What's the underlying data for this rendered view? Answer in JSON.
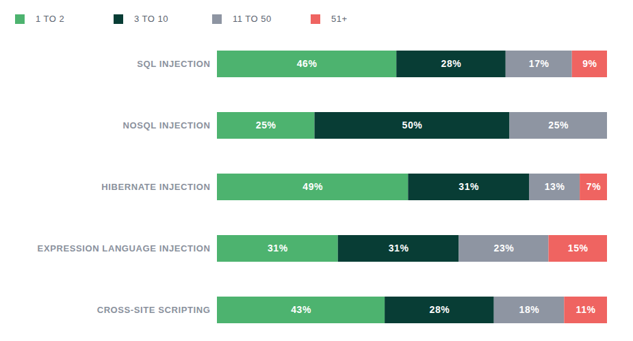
{
  "chart_data": {
    "type": "bar",
    "orientation": "horizontal",
    "stacked": true,
    "data_labels": true,
    "tick_labels": "y",
    "legend": "top",
    "categories": [
      "SQL INJECTION",
      "NOSQL INJECTION",
      "HIBERNATE INJECTION",
      "EXPRESSION LANGUAGE INJECTION",
      "CROSS-SITE SCRIPTING"
    ],
    "xlim": [
      0,
      100
    ],
    "series": [
      {
        "name": "1 TO 2",
        "color": "#4db36f",
        "values": [
          46,
          25,
          49,
          31,
          43
        ],
        "value_labels": [
          "46%",
          "25%",
          "49%",
          "31%",
          "43%"
        ]
      },
      {
        "name": "3 TO 10",
        "color": "#083d35",
        "values": [
          28,
          50,
          31,
          31,
          28
        ],
        "value_labels": [
          "28%",
          "50%",
          "31%",
          "31%",
          "28%"
        ]
      },
      {
        "name": "11 TO 50",
        "color": "#8e95a2",
        "values": [
          17,
          25,
          13,
          23,
          18
        ],
        "value_labels": [
          "17%",
          "25%",
          "13%",
          "23%",
          "18%"
        ]
      },
      {
        "name": "51+",
        "color": "#ef6461",
        "values": [
          9,
          null,
          7,
          15,
          11
        ],
        "value_labels": [
          "9%",
          null,
          "7%",
          "15%",
          "11%"
        ]
      }
    ]
  }
}
